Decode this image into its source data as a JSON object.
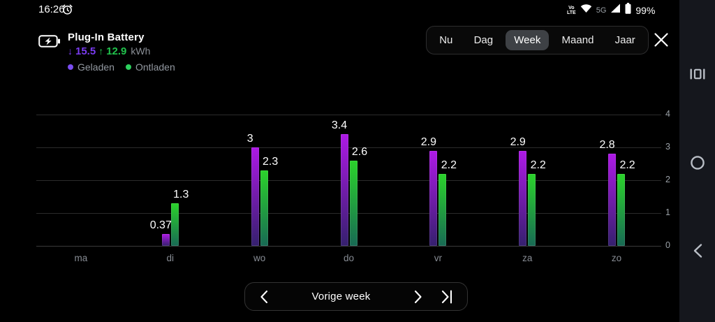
{
  "status_bar": {
    "time": "16:26",
    "volte_top": "Vo",
    "volte_bottom": "LTE",
    "network": "5G",
    "battery": "99%"
  },
  "header": {
    "title": "Plug-In Battery",
    "charged": {
      "arrow": "↓",
      "value": "15.5",
      "color": "#7a3bf0"
    },
    "discharged": {
      "arrow": "↑",
      "value": "12.9",
      "color": "#21c24c"
    },
    "unit": "kWh",
    "legend": [
      {
        "label": "Geladen",
        "color": "#7a4df0"
      },
      {
        "label": "Ontladen",
        "color": "#2dd05e"
      }
    ]
  },
  "tabs": {
    "items": [
      "Nu",
      "Dag",
      "Week",
      "Maand",
      "Jaar"
    ],
    "selected": "Week"
  },
  "chart_data": {
    "type": "bar",
    "title": "Plug-In Battery",
    "categories": [
      "ma",
      "di",
      "wo",
      "do",
      "vr",
      "za",
      "zo"
    ],
    "series": [
      {
        "name": "Geladen",
        "values": [
          null,
          0.37,
          3,
          3.4,
          2.9,
          2.9,
          2.8
        ],
        "labels": [
          "",
          "0.37",
          "3",
          "3.4",
          "2.9",
          "2.9",
          "2.8"
        ],
        "color_top": "#ae19e6",
        "color_bottom": "#35206e"
      },
      {
        "name": "Ontladen",
        "values": [
          null,
          1.3,
          2.3,
          2.6,
          2.2,
          2.2,
          2.2
        ],
        "labels": [
          "",
          "1.3",
          "2.3",
          "2.6",
          "2.2",
          "2.2",
          "2.2"
        ],
        "color_top": "#2bd32b",
        "color_bottom": "#186a54"
      }
    ],
    "ylim": [
      0,
      4
    ],
    "yticks": [
      0,
      1,
      2,
      3,
      4
    ],
    "grid": true,
    "unit": "kWh",
    "legend_position": "top-left"
  },
  "pager": {
    "label": "Vorige week"
  }
}
